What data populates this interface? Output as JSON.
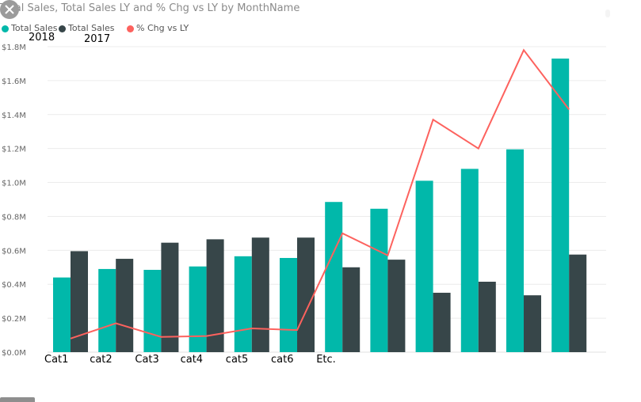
{
  "title": "Total Sales, Total Sales LY and % Chg vs LY by MonthName",
  "legend": [
    {
      "label": "Total Sales",
      "color": "#01b8aa",
      "annotation": "2018"
    },
    {
      "label": "Total Sales",
      "color": "#374649",
      "annotation": "2017"
    },
    {
      "label": "% Chg vs LY",
      "color": "#fd625e"
    }
  ],
  "icons": {
    "close": "close-x-icon"
  },
  "chart_data": {
    "type": "bar",
    "title": "Total Sales, Total Sales LY and % Chg vs LY by MonthName",
    "categories": [
      "Cat1",
      "cat2",
      "Cat3",
      "cat4",
      "cat5",
      "cat6",
      "Etc.",
      "",
      "",
      "",
      "",
      ""
    ],
    "series": [
      {
        "name": "Total Sales",
        "type": "bar",
        "color": "#01b8aa",
        "values": [
          0.44,
          0.49,
          0.485,
          0.505,
          0.565,
          0.555,
          0.885,
          0.845,
          1.01,
          1.08,
          1.195,
          1.73
        ]
      },
      {
        "name": "Total Sales",
        "type": "bar",
        "color": "#374649",
        "values": [
          0.595,
          0.55,
          0.645,
          0.665,
          0.675,
          0.675,
          0.5,
          0.545,
          0.35,
          0.415,
          0.335,
          0.575
        ]
      },
      {
        "name": "% Chg vs LY",
        "type": "line",
        "color": "#fd625e",
        "values": [
          0.08,
          0.17,
          0.09,
          0.095,
          0.14,
          0.13,
          0.7,
          0.57,
          1.37,
          1.2,
          1.78,
          1.43
        ]
      }
    ],
    "ylim": [
      0,
      1.8
    ],
    "yticks": [
      {
        "value": 0.0,
        "label": "$0.0M"
      },
      {
        "value": 0.2,
        "label": "$0.2M"
      },
      {
        "value": 0.4,
        "label": "$0.4M"
      },
      {
        "value": 0.6,
        "label": "$0.6M"
      },
      {
        "value": 0.8,
        "label": "$0.8M"
      },
      {
        "value": 1.0,
        "label": "$1.0M"
      },
      {
        "value": 1.2,
        "label": "$1.2M"
      },
      {
        "value": 1.4,
        "label": "$1.4M"
      },
      {
        "value": 1.6,
        "label": "$1.6M"
      },
      {
        "value": 1.8,
        "label": "$1.8M"
      }
    ],
    "grid": true,
    "legend_position": "top-left"
  }
}
